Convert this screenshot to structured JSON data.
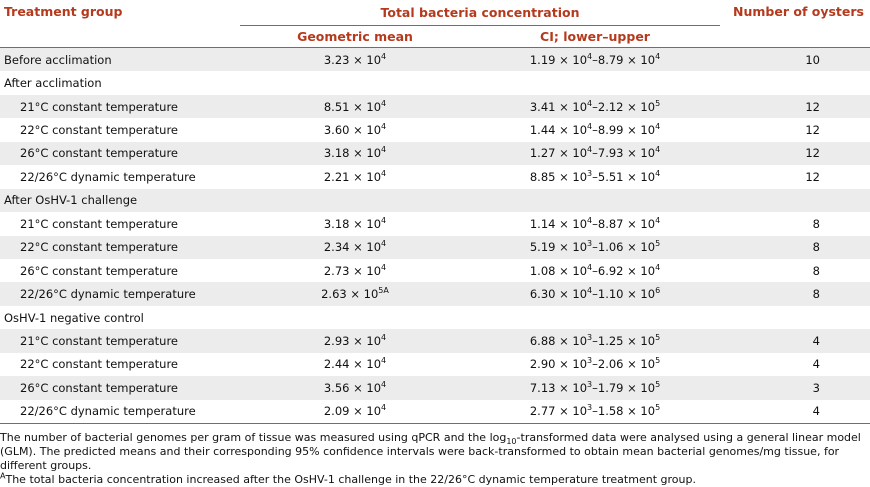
{
  "header": {
    "treatment_group": "Treatment group",
    "total_bacteria": "Total bacteria concentration",
    "number_of_oysters": "Number of oysters",
    "geometric_mean": "Geometric mean",
    "ci_label": "CI; lower–upper"
  },
  "rows": [
    {
      "label": "Before acclimation",
      "indent": false,
      "shade": true,
      "mean": "3.23 × 10",
      "mean_exp": "4",
      "mean_sup": "",
      "ci_lo": "1.19 × 10",
      "ci_lo_exp": "4",
      "ci_hi": "–8.79 × 10",
      "ci_hi_exp": "4",
      "n": "10"
    },
    {
      "label": "After acclimation",
      "indent": false,
      "shade": false,
      "mean": "",
      "mean_exp": "",
      "mean_sup": "",
      "ci_lo": "",
      "ci_lo_exp": "",
      "ci_hi": "",
      "ci_hi_exp": "",
      "n": ""
    },
    {
      "label": "21°C constant temperature",
      "indent": true,
      "shade": true,
      "mean": "8.51 × 10",
      "mean_exp": "4",
      "mean_sup": "",
      "ci_lo": "3.41 × 10",
      "ci_lo_exp": "4",
      "ci_hi": "–2.12 × 10",
      "ci_hi_exp": "5",
      "n": "12"
    },
    {
      "label": "22°C constant temperature",
      "indent": true,
      "shade": false,
      "mean": "3.60 × 10",
      "mean_exp": "4",
      "mean_sup": "",
      "ci_lo": "1.44 × 10",
      "ci_lo_exp": "4",
      "ci_hi": "–8.99 × 10",
      "ci_hi_exp": "4",
      "n": "12"
    },
    {
      "label": "26°C constant temperature",
      "indent": true,
      "shade": true,
      "mean": "3.18 × 10",
      "mean_exp": "4",
      "mean_sup": "",
      "ci_lo": "1.27 × 10",
      "ci_lo_exp": "4",
      "ci_hi": "–7.93 × 10",
      "ci_hi_exp": "4",
      "n": "12"
    },
    {
      "label": "22/26°C dynamic temperature",
      "indent": true,
      "shade": false,
      "mean": "2.21 × 10",
      "mean_exp": "4",
      "mean_sup": "",
      "ci_lo": "8.85 × 10",
      "ci_lo_exp": "3",
      "ci_hi": "–5.51 × 10",
      "ci_hi_exp": "4",
      "n": "12"
    },
    {
      "label": "After OsHV-1 challenge",
      "indent": false,
      "shade": true,
      "mean": "",
      "mean_exp": "",
      "mean_sup": "",
      "ci_lo": "",
      "ci_lo_exp": "",
      "ci_hi": "",
      "ci_hi_exp": "",
      "n": ""
    },
    {
      "label": "21°C constant temperature",
      "indent": true,
      "shade": false,
      "mean": "3.18 × 10",
      "mean_exp": "4",
      "mean_sup": "",
      "ci_lo": "1.14 × 10",
      "ci_lo_exp": "4",
      "ci_hi": "–8.87 × 10",
      "ci_hi_exp": "4",
      "n": "8"
    },
    {
      "label": "22°C constant temperature",
      "indent": true,
      "shade": true,
      "mean": "2.34 × 10",
      "mean_exp": "4",
      "mean_sup": "",
      "ci_lo": "5.19 × 10",
      "ci_lo_exp": "3",
      "ci_hi": "–1.06 × 10",
      "ci_hi_exp": "5",
      "n": "8"
    },
    {
      "label": "26°C constant temperature",
      "indent": true,
      "shade": false,
      "mean": "2.73 × 10",
      "mean_exp": "4",
      "mean_sup": "",
      "ci_lo": "1.08 × 10",
      "ci_lo_exp": "4",
      "ci_hi": "–6.92 × 10",
      "ci_hi_exp": "4",
      "n": "8"
    },
    {
      "label": "22/26°C dynamic temperature",
      "indent": true,
      "shade": true,
      "mean": "2.63 × 10",
      "mean_exp": "5",
      "mean_sup": "A",
      "ci_lo": "6.30 × 10",
      "ci_lo_exp": "4",
      "ci_hi": "–1.10 × 10",
      "ci_hi_exp": "6",
      "n": "8"
    },
    {
      "label": "OsHV-1 negative control",
      "indent": false,
      "shade": false,
      "mean": "",
      "mean_exp": "",
      "mean_sup": "",
      "ci_lo": "",
      "ci_lo_exp": "",
      "ci_hi": "",
      "ci_hi_exp": "",
      "n": ""
    },
    {
      "label": "21°C constant temperature",
      "indent": true,
      "shade": true,
      "mean": "2.93 × 10",
      "mean_exp": "4",
      "mean_sup": "",
      "ci_lo": "6.88 × 10",
      "ci_lo_exp": "3",
      "ci_hi": "–1.25 × 10",
      "ci_hi_exp": "5",
      "n": "4"
    },
    {
      "label": "22°C constant temperature",
      "indent": true,
      "shade": false,
      "mean": "2.44 × 10",
      "mean_exp": "4",
      "mean_sup": "",
      "ci_lo": "2.90 × 10",
      "ci_lo_exp": "3",
      "ci_hi": "–2.06 × 10",
      "ci_hi_exp": "5",
      "n": "4"
    },
    {
      "label": "26°C constant temperature",
      "indent": true,
      "shade": true,
      "mean": "3.56 × 10",
      "mean_exp": "4",
      "mean_sup": "",
      "ci_lo": "7.13 × 10",
      "ci_lo_exp": "3",
      "ci_hi": "–1.79 × 10",
      "ci_hi_exp": "5",
      "n": "3"
    },
    {
      "label": "22/26°C dynamic temperature",
      "indent": true,
      "shade": false,
      "mean": "2.09 × 10",
      "mean_exp": "4",
      "mean_sup": "",
      "ci_lo": "2.77 × 10",
      "ci_lo_exp": "3",
      "ci_hi": "–1.58 × 10",
      "ci_hi_exp": "5",
      "n": "4"
    }
  ],
  "notes": {
    "line1_a": "The number of bacterial genomes per gram of tissue was measured using qPCR and the log",
    "line1_sub": "10",
    "line1_b": "-transformed data were analysed using a general linear model (GLM). The predicted means and their corresponding 95% confidence intervals were back-transformed to obtain mean bacterial genomes/mg tissue, for different groups.",
    "footnote_mark": "A",
    "footnote_text": "The total bacteria concentration increased after the OsHV-1 challenge in the 22/26°C dynamic temperature treatment group."
  },
  "colors": {
    "header_text": "#b53a1d",
    "row_shade": "#ececec",
    "rule": "#6f6f6f"
  }
}
